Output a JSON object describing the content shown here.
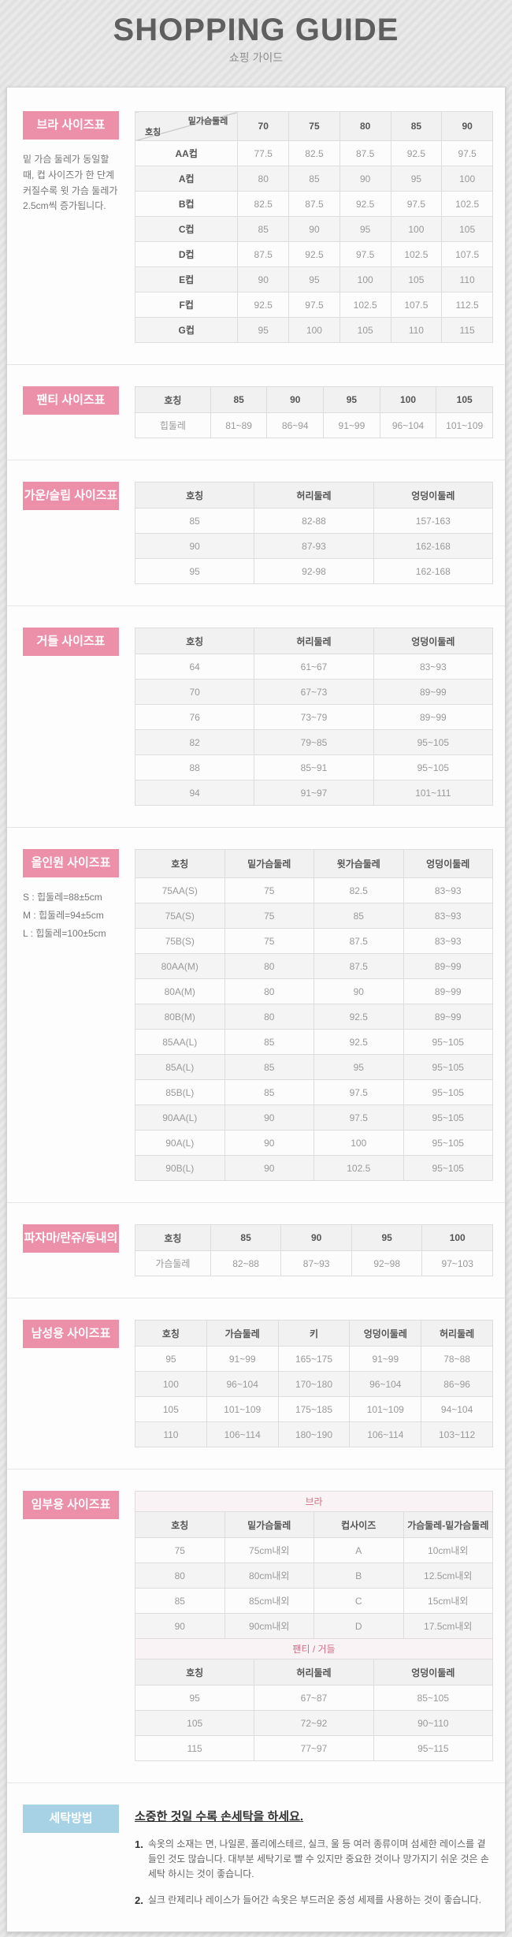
{
  "page": {
    "title": "SHOPPING GUIDE",
    "subtitle": "쇼핑 가이드"
  },
  "colors": {
    "accent_pink": "#ec8fa9",
    "accent_blue": "#a7d1e4",
    "caption_pink_bg": "#faf3f5",
    "caption_pink_text": "#cf6f86"
  },
  "sections": {
    "bra": {
      "label": "브라 사이즈표",
      "note": "밑 가슴 둘레가 동일할 때, 컵 사이즈가 한 단계 커질수록 윗 가슴 둘레가 2.5cm씩 증가됩니다.",
      "table": {
        "diagonal": {
          "top": "밑가슴둘레",
          "bottom": "호칭"
        },
        "headers": [
          "",
          "70",
          "75",
          "80",
          "85",
          "90"
        ],
        "rows": [
          [
            "AA컵",
            "77.5",
            "82.5",
            "87.5",
            "92.5",
            "97.5"
          ],
          [
            "A컵",
            "80",
            "85",
            "90",
            "95",
            "100"
          ],
          [
            "B컵",
            "82.5",
            "87.5",
            "92.5",
            "97.5",
            "102.5"
          ],
          [
            "C컵",
            "85",
            "90",
            "95",
            "100",
            "105"
          ],
          [
            "D컵",
            "87.5",
            "92.5",
            "97.5",
            "102.5",
            "107.5"
          ],
          [
            "E컵",
            "90",
            "95",
            "100",
            "105",
            "110"
          ],
          [
            "F컵",
            "92.5",
            "97.5",
            "102.5",
            "107.5",
            "112.5"
          ],
          [
            "G컵",
            "95",
            "100",
            "105",
            "110",
            "115"
          ]
        ]
      }
    },
    "panty": {
      "label": "팬티 사이즈표",
      "table": {
        "headers": [
          "호칭",
          "85",
          "90",
          "95",
          "100",
          "105"
        ],
        "rows": [
          [
            "힙둘레",
            "81~89",
            "86~94",
            "91~99",
            "96~104",
            "101~109"
          ]
        ]
      }
    },
    "gown": {
      "label": "가운/슬립 사이즈표",
      "table": {
        "headers": [
          "호칭",
          "허리둘레",
          "엉덩이둘레"
        ],
        "rows": [
          [
            "85",
            "82-88",
            "157-163"
          ],
          [
            "90",
            "87-93",
            "162-168"
          ],
          [
            "95",
            "92-98",
            "162-168"
          ]
        ]
      }
    },
    "girdle": {
      "label": "거들 사이즈표",
      "table": {
        "headers": [
          "호칭",
          "허리둘레",
          "엉덩이둘레"
        ],
        "rows": [
          [
            "64",
            "61~67",
            "83~93"
          ],
          [
            "70",
            "67~73",
            "89~99"
          ],
          [
            "76",
            "73~79",
            "89~99"
          ],
          [
            "82",
            "79~85",
            "95~105"
          ],
          [
            "88",
            "85~91",
            "95~105"
          ],
          [
            "94",
            "91~97",
            "101~111"
          ]
        ]
      }
    },
    "allinone": {
      "label": "올인원 사이즈표",
      "notes": [
        "S : 힙둘레=88±5cm",
        "M : 힙둘레=94±5cm",
        "L : 힙둘레=100±5cm"
      ],
      "table": {
        "headers": [
          "호칭",
          "밑가슴둘레",
          "윗가슴둘레",
          "엉덩이둘레"
        ],
        "rows": [
          [
            "75AA(S)",
            "75",
            "82.5",
            "83~93"
          ],
          [
            "75A(S)",
            "75",
            "85",
            "83~93"
          ],
          [
            "75B(S)",
            "75",
            "87.5",
            "83~93"
          ],
          [
            "80AA(M)",
            "80",
            "87.5",
            "89~99"
          ],
          [
            "80A(M)",
            "80",
            "90",
            "89~99"
          ],
          [
            "80B(M)",
            "80",
            "92.5",
            "89~99"
          ],
          [
            "85AA(L)",
            "85",
            "92.5",
            "95~105"
          ],
          [
            "85A(L)",
            "85",
            "95",
            "95~105"
          ],
          [
            "85B(L)",
            "85",
            "97.5",
            "95~105"
          ],
          [
            "90AA(L)",
            "90",
            "97.5",
            "95~105"
          ],
          [
            "90A(L)",
            "90",
            "100",
            "95~105"
          ],
          [
            "90B(L)",
            "90",
            "102.5",
            "95~105"
          ]
        ]
      }
    },
    "pajama": {
      "label": "파자마/란쥬/동내의",
      "table": {
        "headers": [
          "호칭",
          "85",
          "90",
          "95",
          "100"
        ],
        "rows": [
          [
            "가슴둘레",
            "82~88",
            "87~93",
            "92~98",
            "97~103"
          ]
        ]
      }
    },
    "mens": {
      "label": "남성용 사이즈표",
      "table": {
        "headers": [
          "호칭",
          "가슴둘레",
          "키",
          "엉덩이둘레",
          "허리둘레"
        ],
        "rows": [
          [
            "95",
            "91~99",
            "165~175",
            "91~99",
            "78~88"
          ],
          [
            "100",
            "96~104",
            "170~180",
            "96~104",
            "86~96"
          ],
          [
            "105",
            "101~109",
            "175~185",
            "101~109",
            "94~104"
          ],
          [
            "110",
            "106~114",
            "180~190",
            "106~114",
            "103~112"
          ]
        ]
      }
    },
    "maternity": {
      "label": "임부용 사이즈표",
      "bra_table": {
        "caption": "브라",
        "headers": [
          "호칭",
          "밑가슴둘레",
          "컵사이즈",
          "가슴둘레-밑가슴둘레"
        ],
        "rows": [
          [
            "75",
            "75cm내외",
            "A",
            "10cm내외"
          ],
          [
            "80",
            "80cm내외",
            "B",
            "12.5cm내외"
          ],
          [
            "85",
            "85cm내외",
            "C",
            "15cm내외"
          ],
          [
            "90",
            "90cm내외",
            "D",
            "17.5cm내외"
          ]
        ]
      },
      "bottom_table": {
        "caption": "팬티 / 거들",
        "headers": [
          "호칭",
          "허리둘레",
          "엉덩이둘레"
        ],
        "rows": [
          [
            "95",
            "67~87",
            "85~105"
          ],
          [
            "105",
            "72~92",
            "90~110"
          ],
          [
            "115",
            "77~97",
            "95~115"
          ]
        ]
      }
    },
    "washing": {
      "label": "세탁방법",
      "title": "소중한 것일 수록 손세탁을 하세요.",
      "items": [
        "속옷의 소재는 면, 나일론, 폴리에스테르, 실크, 울 등 여러 종류이며 섬세한 레이스를 곁들인 것도 많습니다. 대부분 세탁기로 빨 수 있지만 중요한 것이나 망가지기 쉬운 것은 손세탁 하시는 것이 좋습니다.",
        "실크 란제리나 레이스가 들어간 속옷은 부드러운 중성 세제를 사용하는 것이 좋습니다."
      ]
    }
  }
}
